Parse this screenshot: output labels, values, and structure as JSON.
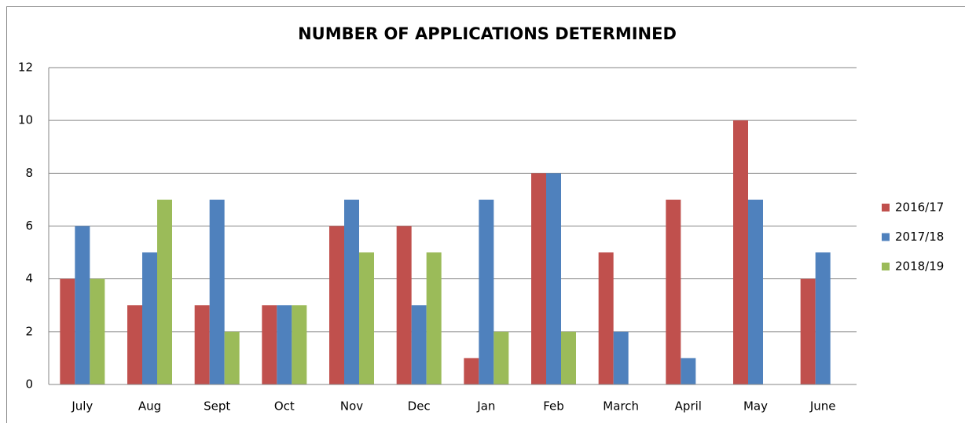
{
  "chart_data": {
    "type": "bar",
    "title": "NUMBER OF APPLICATIONS DETERMINED",
    "categories": [
      "July",
      "Aug",
      "Sept",
      "Oct",
      "Nov",
      "Dec",
      "Jan",
      "Feb",
      "March",
      "April",
      "May",
      "June"
    ],
    "series": [
      {
        "name": "2016/17",
        "color": "#c0504d",
        "values": [
          4,
          3,
          3,
          3,
          6,
          6,
          1,
          8,
          5,
          7,
          10,
          4
        ]
      },
      {
        "name": "2017/18",
        "color": "#4f81bd",
        "values": [
          6,
          5,
          7,
          3,
          7,
          3,
          7,
          8,
          2,
          1,
          7,
          5
        ]
      },
      {
        "name": "2018/19",
        "color": "#9bbb59",
        "values": [
          4,
          7,
          2,
          3,
          5,
          5,
          2,
          2,
          null,
          null,
          null,
          null
        ]
      }
    ],
    "ylim": [
      0,
      12
    ],
    "yticks": [
      0,
      2,
      4,
      6,
      8,
      10,
      12
    ],
    "grid": true,
    "legend": "right"
  }
}
